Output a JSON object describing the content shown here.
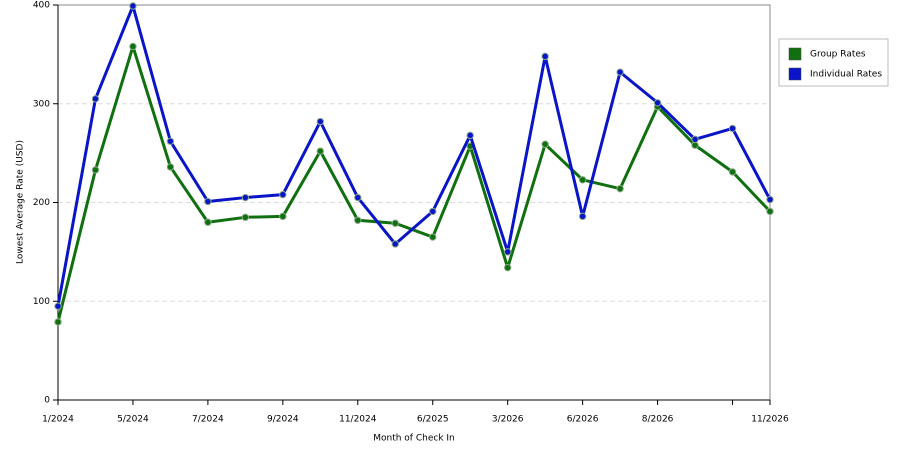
{
  "chart_data": {
    "type": "line",
    "xlabel": "Month of Check In",
    "ylabel": "Lowest Average Rate (USD)",
    "categories": [
      "1/2024",
      null,
      "5/2024",
      null,
      "7/2024",
      null,
      "9/2024",
      null,
      "11/2024",
      null,
      "6/2025",
      null,
      "3/2026",
      null,
      "6/2026",
      null,
      "8/2026",
      null,
      null,
      "11/2026"
    ],
    "series": [
      {
        "name": "Group Rates",
        "color": "#107010",
        "values": [
          79,
          233,
          358,
          236,
          180,
          185,
          186,
          252,
          182,
          179,
          165,
          257,
          134,
          259,
          223,
          214,
          297,
          258,
          231,
          191
        ]
      },
      {
        "name": "Individual Rates",
        "color": "#0a14c8",
        "values": [
          95,
          305,
          399,
          262,
          201,
          205,
          208,
          282,
          205,
          158,
          191,
          268,
          150,
          348,
          186,
          332,
          301,
          264,
          275,
          203
        ]
      }
    ],
    "ylim": [
      0,
      400
    ],
    "yticks": [
      0,
      100,
      200,
      300,
      400
    ],
    "grid": true,
    "legend": "upper right"
  }
}
